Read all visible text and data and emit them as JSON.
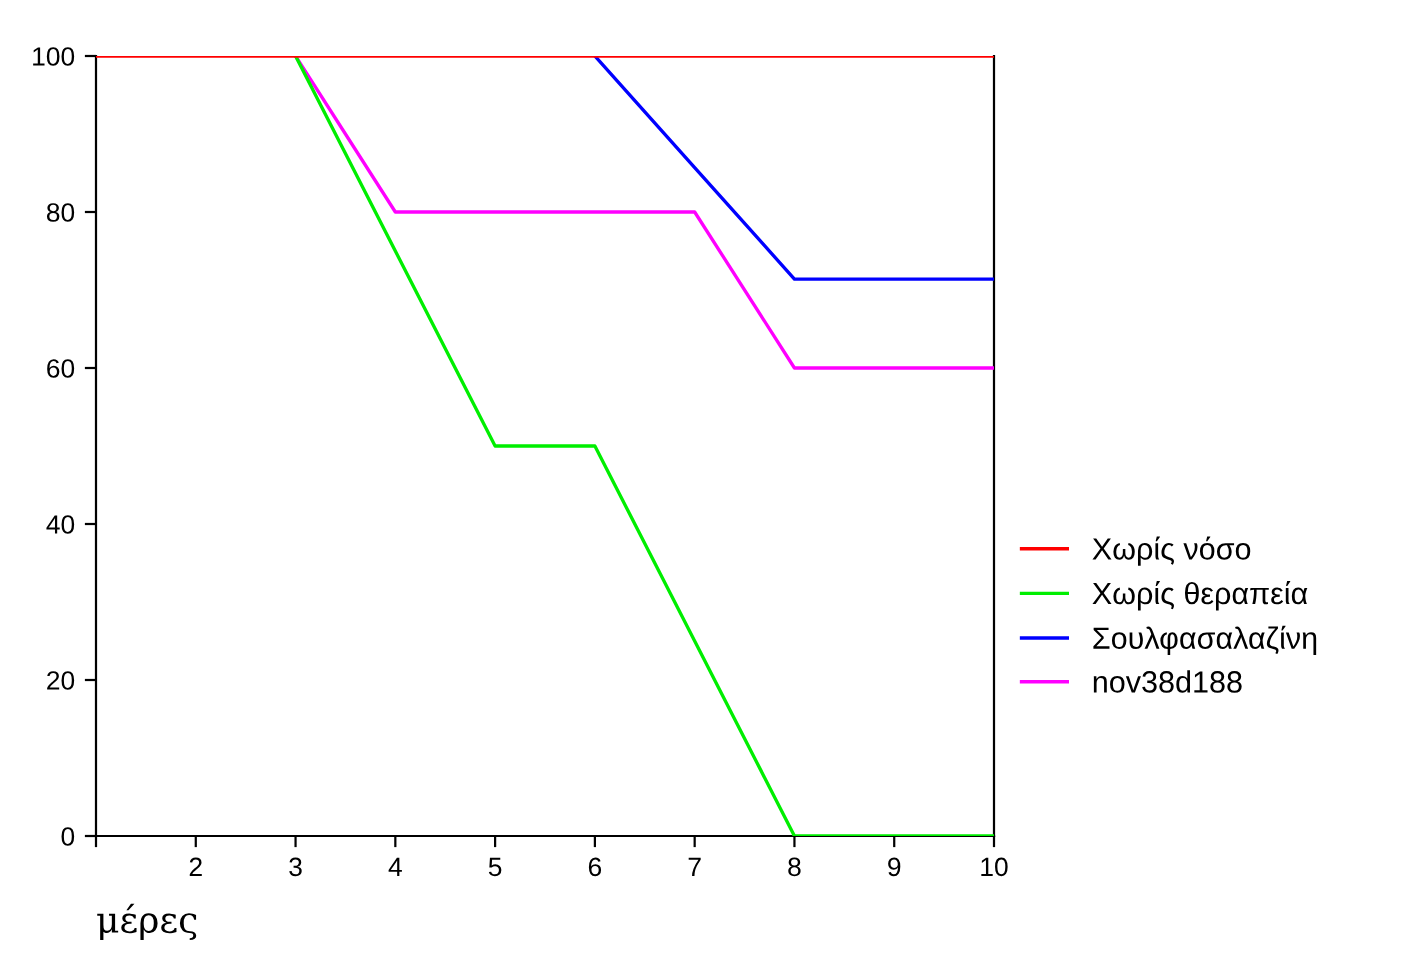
{
  "chart_data": {
    "type": "line",
    "xlabel": "μέρες",
    "x": [
      1,
      2,
      3,
      4,
      5,
      6,
      7,
      8,
      9,
      10
    ],
    "xlim": [
      1,
      10
    ],
    "xticks": [
      {
        "value": 1,
        "label": null
      },
      2,
      3,
      4,
      5,
      6,
      7,
      8,
      9,
      10
    ],
    "ylim": [
      0,
      100
    ],
    "yticks": [
      0,
      20,
      40,
      60,
      80,
      100
    ],
    "grid": false,
    "legend": "right",
    "marker": "none",
    "line_style": "solid",
    "series": [
      {
        "name": "Χωρίς νόσο",
        "color": "#ff0000",
        "values": [
          100,
          100,
          100,
          100,
          100,
          100,
          100,
          100,
          100,
          100
        ]
      },
      {
        "name": "Χωρίς θεραπεία",
        "color": "#00ee00",
        "values": [
          null,
          null,
          100,
          75,
          50,
          50,
          25,
          0,
          0,
          0
        ]
      },
      {
        "name": "Σουλφασαλαζίνη",
        "color": "#0000ff",
        "values": [
          null,
          null,
          null,
          null,
          null,
          100,
          85.7,
          71.4,
          71.4,
          71.4
        ]
      },
      {
        "name": "nov38d188",
        "color": "#ff00ff",
        "values": [
          null,
          null,
          100,
          80,
          80,
          80,
          80,
          60,
          60,
          60
        ]
      }
    ]
  }
}
